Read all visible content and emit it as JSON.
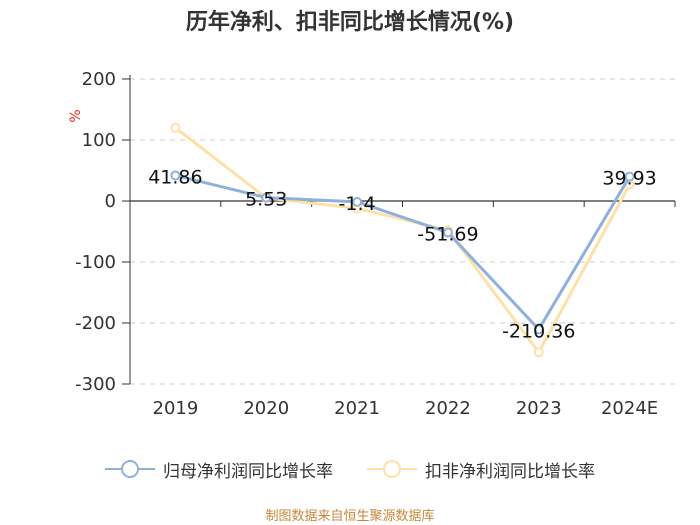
{
  "title": "历年净利、扣非同比增长情况(%)",
  "source_note": "制图数据来自恒生聚源数据库",
  "colors": {
    "series1": "#8fb0dc",
    "series2": "#fde1a6",
    "axis": "#333333",
    "grid": "#cccccc",
    "unit": "#e0302a"
  },
  "chart_data": {
    "type": "line",
    "title": "历年净利、扣非同比增长情况(%)",
    "ylabel": "%",
    "xlabel": "",
    "ylim": [
      -300,
      200
    ],
    "yticks": [
      200,
      100,
      0,
      -100,
      -200,
      -300
    ],
    "categories": [
      "2019",
      "2020",
      "2021",
      "2022",
      "2023",
      "2024E"
    ],
    "series": [
      {
        "name": "归母净利润同比增长率",
        "values": [
          41.86,
          5.53,
          -1.4,
          -51.69,
          -210.36,
          39.93
        ],
        "labeled": true
      },
      {
        "name": "扣非净利润同比增长率",
        "values": [
          120,
          5,
          -12,
          -48,
          -248,
          27
        ],
        "labeled": false
      }
    ]
  }
}
